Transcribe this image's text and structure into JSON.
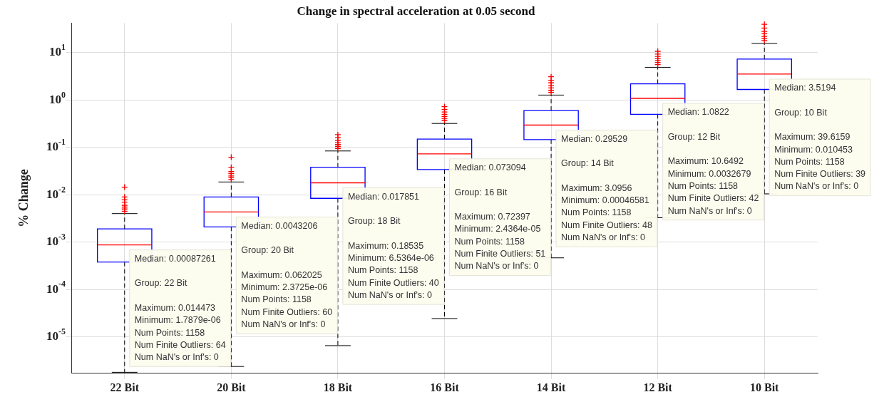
{
  "chart_data": {
    "type": "box",
    "title": "Change in spectral acceleration at 0.05 second",
    "ylabel": "% Change",
    "categories": [
      "22 Bit",
      "20 Bit",
      "18 Bit",
      "16 Bit",
      "14 Bit",
      "12 Bit",
      "10 Bit"
    ],
    "color": "#0000ff",
    "log": "y",
    "grid": true,
    "legend": false,
    "ylim": [
      1.7e-06,
      42
    ],
    "yticks": [
      {
        "value": 1e-05,
        "label": "10$^{-5}$"
      },
      {
        "value": 0.0001,
        "label": "10$^{-4}$"
      },
      {
        "value": 0.001,
        "label": "10$^{-3}$"
      },
      {
        "value": 0.01,
        "label": "10$^{-2}$"
      },
      {
        "value": 0.1,
        "label": "10$^{-1}$"
      },
      {
        "value": 1,
        "label": "10$^{0}$"
      },
      {
        "value": 10,
        "label": "10$^{1}$"
      }
    ],
    "boxes": [
      {
        "low": 1.7879e-06,
        "q1": 0.00038,
        "median": 0.00087261,
        "q3": 0.0019,
        "high": 0.004,
        "outliers": [
          0.0045,
          0.005,
          0.0055,
          0.006,
          0.007,
          0.0078,
          0.009,
          0.014473
        ]
      },
      {
        "low": 2.3725e-06,
        "q1": 0.0021,
        "median": 0.0043206,
        "q3": 0.009,
        "high": 0.0186,
        "outliers": [
          0.021,
          0.023,
          0.025,
          0.028,
          0.031,
          0.038,
          0.062025
        ]
      },
      {
        "low": 6.5364e-06,
        "q1": 0.0084,
        "median": 0.017851,
        "q3": 0.038,
        "high": 0.084,
        "outliers": [
          0.095,
          0.105,
          0.115,
          0.125,
          0.14,
          0.16,
          0.18535
        ]
      },
      {
        "low": 2.4364e-05,
        "q1": 0.034,
        "median": 0.073094,
        "q3": 0.15,
        "high": 0.32,
        "outliers": [
          0.37,
          0.41,
          0.45,
          0.5,
          0.56,
          0.63,
          0.72397
        ]
      },
      {
        "low": 0.00046581,
        "q1": 0.146,
        "median": 0.29529,
        "q3": 0.6,
        "high": 1.27,
        "outliers": [
          1.45,
          1.6,
          1.8,
          2.0,
          2.3,
          2.6,
          3.0956
        ]
      },
      {
        "low": 0.0032679,
        "q1": 0.5,
        "median": 1.0822,
        "q3": 2.2,
        "high": 4.9,
        "outliers": [
          5.6,
          6.2,
          6.8,
          7.5,
          8.3,
          9.3,
          10.6492
        ]
      },
      {
        "low": 0.010453,
        "q1": 1.67,
        "median": 3.5194,
        "q3": 7.3,
        "high": 15.6,
        "outliers": [
          18,
          20,
          22,
          25,
          28,
          33,
          39.6159
        ]
      }
    ],
    "annotations": [
      {
        "text": "Median: 0.00087261",
        "x": "22 Bit",
        "y": 0.00087261
      },
      "Group: 22 Bit",
      "Maximum: 0.014473",
      "Minimum: 1.7879e-06",
      "Num Points: 1158",
      "Num Finite Outliers: 64",
      "Num NaN's or Inf's: 0",
      {
        "text": "Median: 0.0043206",
        "x": "20 Bit",
        "y": 0.0043206
      },
      "Group: 20 Bit",
      "Maximum: 0.062025",
      "Minimum: 2.3725e-06",
      "Num Points: 1158",
      "Num Finite Outliers: 60",
      "Num NaN's or Inf's: 0",
      {
        "text": "Median: 0.017851",
        "x": "18 Bit",
        "y": 0.017851
      },
      "Group: 18 Bit",
      "Maximum: 0.18535",
      "Minimum: 6.5364e-06",
      "Num Points: 1158",
      "Num Finite Outliers: 40",
      "Num NaN's or Inf's: 0",
      {
        "text": "Median: 0.073094",
        "x": "16 Bit",
        "y": 0.073094
      },
      "Group: 16 Bit",
      "Maximum: 0.72397",
      "Minimum: 2.4364e-05",
      "Num Points: 1158",
      "Num Finite Outliers: 51",
      "Num NaN's or Inf's: 0",
      {
        "text": "Median: 0.29529",
        "x": "14 Bit",
        "y": 0.29529
      },
      "Group: 14 Bit",
      "Maximum: 3.0956",
      "Minimum: 0.00046581",
      "Num Points: 1158",
      "Num Finite Outliers: 48",
      "Num NaN's or Inf's: 0",
      {
        "text": "Median: 1.0822",
        "x": "12 Bit",
        "y": 1.0822
      },
      "Group: 12 Bit",
      "Maximum: 10.6492",
      "Minimum: 0.0032679",
      "Num Points: 1158",
      "Num Finite Outliers: 42",
      "Num NaN's or Inf's: 0",
      {
        "text": "Median: 3.5194",
        "x": "10 Bit",
        "y": 3.5194
      },
      "Group: 10 Bit",
      "Maximum: 39.6159",
      "Minimum: 0.010453",
      "Num Points: 1158",
      "Num Finite Outliers: 39",
      "Num NaN's or Inf's: 0"
    ]
  }
}
